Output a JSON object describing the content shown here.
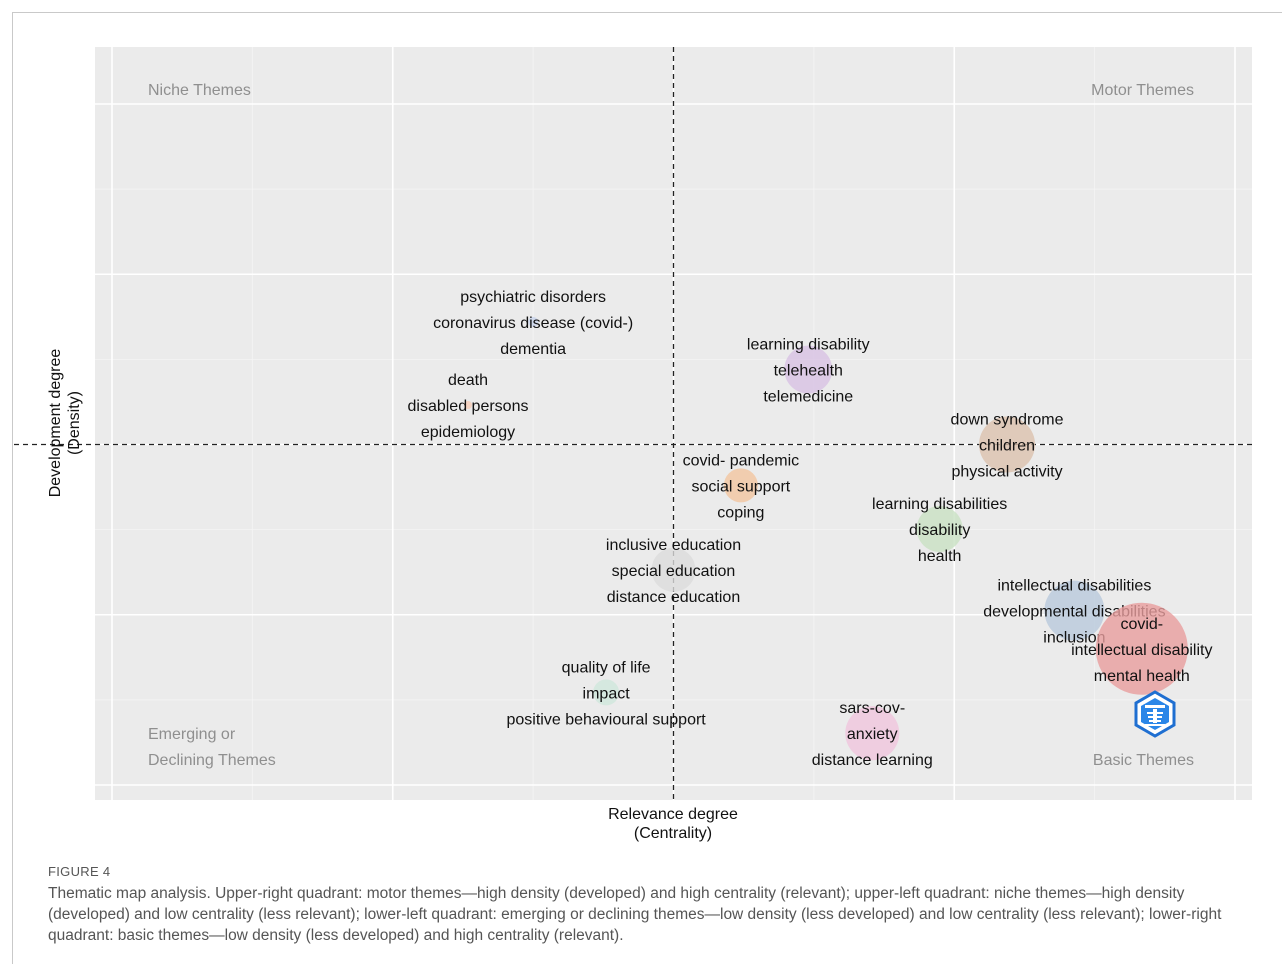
{
  "chart_data": {
    "type": "scatter",
    "xlabel_line1": "Relevance degree",
    "xlabel_line2": "(Centrality)",
    "ylabel_line1": "Development degree",
    "ylabel_line2": "(Density)",
    "quadrants": {
      "top_left": "Niche Themes",
      "top_right": "Motor Themes",
      "bottom_left_line1": "Emerging or",
      "bottom_left_line2": "Declining Themes",
      "bottom_right": "Basic Themes"
    },
    "xlim": [
      0,
      1
    ],
    "ylim": [
      0,
      1
    ],
    "reference_lines": {
      "x": 0.5,
      "y": 0.5
    },
    "grid": true,
    "clusters": [
      {
        "x": 0.375,
        "y": 0.68,
        "size": 10,
        "color": "#c9d4ec",
        "labels": [
          "psychiatric disorders",
          "coronavirus disease  (covid-)",
          "dementia"
        ]
      },
      {
        "x": 0.317,
        "y": 0.558,
        "size": 8,
        "color": "#f7cdb8",
        "labels": [
          "death",
          "disabled persons",
          "epidemiology"
        ]
      },
      {
        "x": 0.62,
        "y": 0.61,
        "size": 48,
        "color": "#d8c2e4",
        "labels": [
          "learning disability",
          "telehealth",
          "telemedicine"
        ]
      },
      {
        "x": 0.797,
        "y": 0.5,
        "size": 56,
        "color": "#dcc2ae",
        "labels": [
          "down syndrome",
          "children",
          "physical activity"
        ]
      },
      {
        "x": 0.56,
        "y": 0.44,
        "size": 34,
        "color": "#f3c6a0",
        "labels": [
          "covid- pandemic",
          "social support",
          "coping"
        ]
      },
      {
        "x": 0.737,
        "y": 0.376,
        "size": 46,
        "color": "#c9e1c3",
        "labels": [
          "learning disabilities",
          "disability",
          "health"
        ]
      },
      {
        "x": 0.5,
        "y": 0.316,
        "size": 44,
        "color": "#dcdcdc",
        "labels": [
          "inclusive education",
          "special education",
          "distance education"
        ]
      },
      {
        "x": 0.857,
        "y": 0.256,
        "size": 60,
        "color": "#b9c9dc",
        "labels": [
          "intellectual disabilities",
          "developmental disabilities",
          "inclusion"
        ]
      },
      {
        "x": 0.917,
        "y": 0.2,
        "size": 92,
        "color": "#e99e9e",
        "labels": [
          "covid-",
          "intellectual disability",
          "mental health"
        ]
      },
      {
        "x": 0.44,
        "y": 0.136,
        "size": 26,
        "color": "#cfe7dc",
        "labels": [
          "quality of life",
          "impact",
          "positive behavioural support"
        ]
      },
      {
        "x": 0.677,
        "y": 0.076,
        "size": 54,
        "color": "#f0c6dd",
        "labels": [
          "sars-cov-",
          "anxiety",
          "distance learning"
        ]
      }
    ]
  },
  "figure": {
    "label": "FIGURE 4",
    "caption": "Thematic map analysis. Upper-right quadrant: motor themes—high density (developed) and high centrality (relevant); upper-left quadrant: niche themes—high density (developed) and low centrality (less relevant); lower-left quadrant: emerging or declining themes—low density (less developed) and low centrality (less relevant); lower-right quadrant: basic themes—low density (less developed) and high centrality (relevant)."
  },
  "logo_icon": "bibliometrix-logo-icon"
}
